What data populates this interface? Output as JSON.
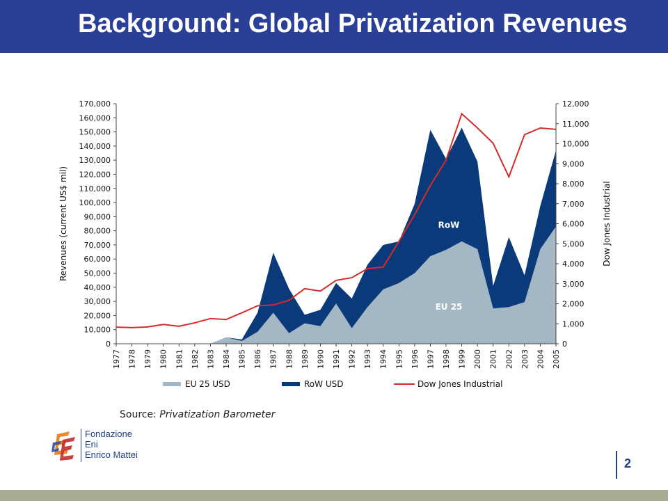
{
  "slide": {
    "title": "Background: Global Privatization Revenues",
    "source_label": "Source:",
    "source_value": "Privatization Barometer",
    "page_number": "2",
    "logo_lines": [
      "Fondazione",
      "Eni",
      "Enrico Mattei"
    ]
  },
  "colors": {
    "title_bar": "#2a3f96",
    "eu25": "#a3b7c4",
    "row": "#0b3a7b",
    "dow": "#d52b2b",
    "bottom_bar": "#a7ad92"
  },
  "chart_data": {
    "type": "area",
    "categories": [
      "1977",
      "1978",
      "1979",
      "1980",
      "1981",
      "1982",
      "1983",
      "1984",
      "1985",
      "1986",
      "1987",
      "1988",
      "1989",
      "1990",
      "1991",
      "1992",
      "1993",
      "1994",
      "1995",
      "1996",
      "1997",
      "1998",
      "1999",
      "2000",
      "2001",
      "2002",
      "2003",
      "2004",
      "2005"
    ],
    "series": [
      {
        "name": "EU 25 USD",
        "axis": "left",
        "kind": "area",
        "values": [
          0,
          0,
          0,
          0,
          0,
          0,
          0,
          4500,
          2000,
          8500,
          22000,
          7500,
          14500,
          12500,
          28500,
          11000,
          26000,
          38500,
          43000,
          50000,
          62000,
          66500,
          72500,
          67000,
          25000,
          26000,
          29500,
          67000,
          83000
        ]
      },
      {
        "name": "RoW USD",
        "axis": "left",
        "kind": "area",
        "values": [
          0,
          0,
          0,
          0,
          0,
          0,
          0,
          0,
          1000,
          13500,
          42500,
          31500,
          6000,
          11500,
          14500,
          21000,
          30000,
          31500,
          29500,
          49000,
          89500,
          64500,
          80500,
          62000,
          16000,
          49500,
          19000,
          30500,
          54000
        ]
      },
      {
        "name": "Dow Jones Industrial",
        "axis": "right",
        "kind": "line",
        "values": [
          830,
          805,
          838,
          963,
          875,
          1046,
          1258,
          1212,
          1546,
          1896,
          1939,
          2168,
          2753,
          2633,
          3168,
          3301,
          3754,
          3834,
          5117,
          6448,
          7908,
          9181,
          11497,
          10787,
          10021,
          8342,
          10453,
          10783,
          10718
        ]
      }
    ],
    "ylabel": "Revenues (current US$ mil)",
    "ylabel_right": "Dow Jones Industrial",
    "ylim": [
      0,
      170000
    ],
    "ylim_right": [
      0,
      12000
    ],
    "yticks": [
      "0",
      "10,000",
      "20,000",
      "30,000",
      "40,000",
      "50,000",
      "60,000",
      "70,000",
      "80,000",
      "90,000",
      "100,000",
      "110,000",
      "120,000",
      "130,000",
      "140,000",
      "150,000",
      "160,000",
      "170,000"
    ],
    "yticks_right": [
      "0",
      "1,000",
      "2,000",
      "3,000",
      "4,000",
      "5,000",
      "6,000",
      "7,000",
      "8,000",
      "9,000",
      "10,000",
      "11,000",
      "12,000"
    ],
    "annotations": [
      {
        "text": "RoW",
        "year": "1998",
        "value": 84000
      },
      {
        "text": "EU 25",
        "year": "1998",
        "value": 26000
      }
    ],
    "legend": [
      "EU 25 USD",
      "RoW USD",
      "Dow Jones Industrial"
    ],
    "legend_position": "bottom",
    "grid": false
  }
}
